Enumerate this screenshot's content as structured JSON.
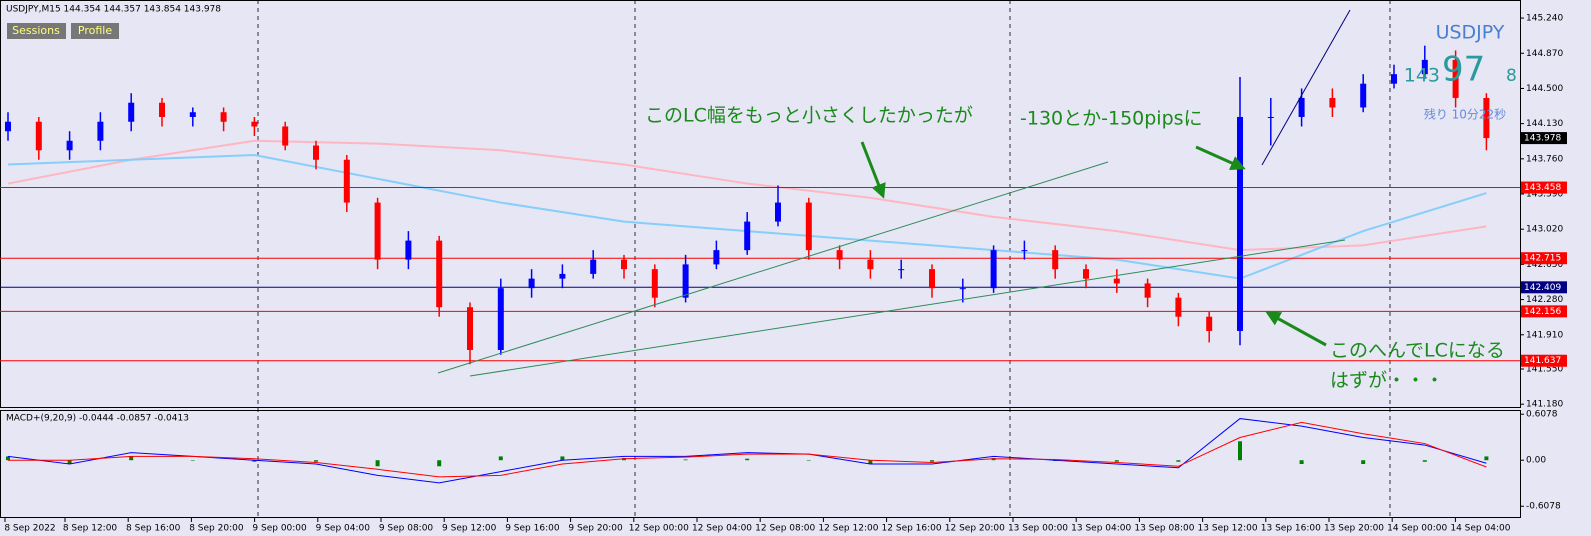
{
  "chart_data": {
    "type": "candlestick",
    "title": "USDJPY,M15  144.354 144.357 143.854 143.978",
    "buttons": [
      "Sessions",
      "Profile"
    ],
    "symbol_label": "USDJPY",
    "price_big": [
      "143",
      "97",
      "8"
    ],
    "timer": "残り 10分22秒",
    "annotations": [
      "このLC幅をもっと小さくしたかったが",
      "-130とか-150pipsに",
      "このへんでLCになる",
      "はずが・・・"
    ],
    "ylim": [
      141.14,
      145.43
    ],
    "yticks": [
      {
        "value": 145.24,
        "label": "145.240"
      },
      {
        "value": 144.87,
        "label": "144.870"
      },
      {
        "value": 144.5,
        "label": "144.500"
      },
      {
        "value": 144.13,
        "label": "144.130"
      },
      {
        "value": 143.76,
        "label": "143.760"
      },
      {
        "value": 143.39,
        "label": "143.390"
      },
      {
        "value": 143.02,
        "label": "143.020"
      },
      {
        "value": 142.65,
        "label": "142.650"
      },
      {
        "value": 142.28,
        "label": "142.280"
      },
      {
        "value": 141.91,
        "label": "141.910"
      },
      {
        "value": 141.55,
        "label": "141.550"
      },
      {
        "value": 141.18,
        "label": "141.180"
      }
    ],
    "xtick_labels": [
      "8 Sep 2022",
      "8 Sep 12:00",
      "8 Sep 16:00",
      "8 Sep 20:00",
      "9 Sep 00:00",
      "9 Sep 04:00",
      "9 Sep 08:00",
      "9 Sep 12:00",
      "9 Sep 16:00",
      "9 Sep 20:00",
      "12 Sep 00:00",
      "12 Sep 04:00",
      "12 Sep 08:00",
      "12 Sep 12:00",
      "12 Sep 16:00",
      "12 Sep 20:00",
      "13 Sep 00:00",
      "13 Sep 04:00",
      "13 Sep 08:00",
      "13 Sep 12:00",
      "13 Sep 16:00",
      "13 Sep 20:00",
      "14 Sep 00:00",
      "14 Sep 04:00"
    ],
    "up_color": "#0000ff",
    "down_color": "#ff0000",
    "open": [
      144.05,
      144.15,
      143.85,
      143.95,
      144.15,
      144.35,
      144.2,
      144.25,
      144.15,
      144.1,
      143.9,
      143.75,
      143.3,
      142.7,
      142.9,
      142.2,
      141.75,
      142.4,
      142.5,
      142.55,
      142.7,
      142.6,
      142.3,
      142.65,
      142.8,
      143.1,
      143.3,
      142.8,
      142.7,
      142.6,
      142.6,
      142.4,
      142.4,
      142.8,
      142.8,
      142.6,
      142.5,
      142.45,
      142.3,
      142.1,
      141.95,
      144.2,
      144.2,
      144.4,
      144.3,
      144.55,
      144.65,
      144.8,
      144.4
    ],
    "high": [
      144.25,
      144.2,
      144.05,
      144.25,
      144.45,
      144.4,
      144.3,
      144.3,
      144.2,
      144.15,
      143.95,
      143.8,
      143.35,
      143.0,
      142.95,
      142.25,
      142.5,
      142.6,
      142.65,
      142.8,
      142.75,
      142.65,
      142.75,
      142.9,
      143.2,
      143.48,
      143.35,
      142.85,
      142.8,
      142.7,
      142.65,
      142.5,
      142.85,
      142.9,
      142.85,
      142.65,
      142.6,
      142.5,
      142.35,
      142.15,
      144.62,
      144.4,
      144.5,
      144.5,
      144.65,
      144.75,
      144.95,
      144.9,
      144.45
    ],
    "low": [
      143.95,
      143.75,
      143.75,
      143.85,
      144.05,
      144.1,
      144.1,
      144.05,
      144.0,
      143.85,
      143.65,
      143.2,
      142.6,
      142.6,
      142.1,
      141.6,
      141.7,
      142.3,
      142.4,
      142.5,
      142.5,
      142.2,
      142.25,
      142.6,
      142.75,
      143.05,
      142.7,
      142.6,
      142.5,
      142.5,
      142.3,
      142.25,
      142.35,
      142.7,
      142.5,
      142.4,
      142.35,
      142.2,
      142.0,
      141.83,
      141.8,
      143.9,
      144.1,
      144.2,
      144.25,
      144.5,
      144.6,
      144.3,
      143.85
    ],
    "close": [
      144.15,
      143.85,
      143.95,
      144.15,
      144.35,
      144.2,
      144.25,
      144.15,
      144.1,
      143.9,
      143.75,
      143.3,
      142.7,
      142.9,
      142.2,
      141.75,
      142.4,
      142.5,
      142.55,
      142.7,
      142.6,
      142.3,
      142.65,
      142.8,
      143.1,
      143.3,
      142.8,
      142.7,
      142.6,
      142.6,
      142.4,
      142.4,
      142.8,
      142.8,
      142.6,
      142.5,
      142.45,
      142.3,
      142.1,
      141.95,
      144.2,
      144.2,
      144.4,
      144.3,
      144.55,
      144.65,
      144.8,
      144.4,
      143.978
    ],
    "ma_x": [
      0,
      4,
      8,
      12,
      16,
      20,
      24,
      28,
      32,
      36,
      40,
      44,
      48
    ],
    "moving_averages": [
      {
        "color": "#ffb6c1",
        "values": [
          143.5,
          143.75,
          143.95,
          143.92,
          143.85,
          143.7,
          143.5,
          143.35,
          143.15,
          143.0,
          142.8,
          142.85,
          143.05
        ]
      },
      {
        "color": "#87cefa",
        "values": [
          143.7,
          143.75,
          143.8,
          143.55,
          143.3,
          143.1,
          143.0,
          142.9,
          142.8,
          142.7,
          142.5,
          143.0,
          143.4
        ]
      }
    ],
    "levels": [
      {
        "value": 143.458,
        "color": "#ff0000"
      },
      {
        "value": 142.715,
        "color": "#ff0000"
      },
      {
        "value": 142.409,
        "color": "#000080"
      },
      {
        "value": 142.156,
        "color": "#ff0000"
      },
      {
        "value": 141.637,
        "color": "#ff0000"
      }
    ],
    "current_price": 143.978,
    "macd": {
      "label": "MACD+(9,20,9) -0.0444 -0.0857 -0.0413",
      "ylim": [
        -0.75,
        0.65
      ],
      "yticks": [
        0.6078,
        {
          "value": 0,
          "label": "0.00"
        },
        -0.6078
      ],
      "x": [
        0,
        2,
        4,
        6,
        8,
        10,
        12,
        14,
        16,
        18,
        20,
        22,
        24,
        26,
        28,
        30,
        32,
        34,
        36,
        38,
        40,
        42,
        44,
        46,
        48
      ],
      "main": {
        "color": "#0000ff",
        "values": [
          0.05,
          -0.05,
          0.1,
          0.05,
          0.0,
          -0.05,
          -0.2,
          -0.3,
          -0.15,
          0.0,
          0.05,
          0.05,
          0.1,
          0.08,
          -0.05,
          -0.05,
          0.05,
          0.0,
          -0.05,
          -0.1,
          0.55,
          0.45,
          0.3,
          0.2,
          -0.04
        ]
      },
      "signal": {
        "color": "#ff0000",
        "values": [
          0.0,
          0.0,
          0.05,
          0.05,
          0.02,
          -0.03,
          -0.12,
          -0.22,
          -0.2,
          -0.05,
          0.02,
          0.04,
          0.08,
          0.08,
          0.0,
          -0.03,
          0.02,
          0.01,
          -0.03,
          -0.08,
          0.3,
          0.5,
          0.35,
          0.22,
          -0.09
        ]
      },
      "histogram": {
        "color": "#008000",
        "values": [
          0.05,
          -0.05,
          0.05,
          0,
          -0.02,
          -0.02,
          -0.08,
          -0.08,
          0.05,
          0.05,
          0.03,
          0.01,
          0.02,
          0,
          -0.05,
          -0.02,
          0.03,
          -0.01,
          -0.02,
          -0.02,
          0.25,
          -0.05,
          -0.05,
          -0.02,
          0.05
        ]
      }
    }
  }
}
